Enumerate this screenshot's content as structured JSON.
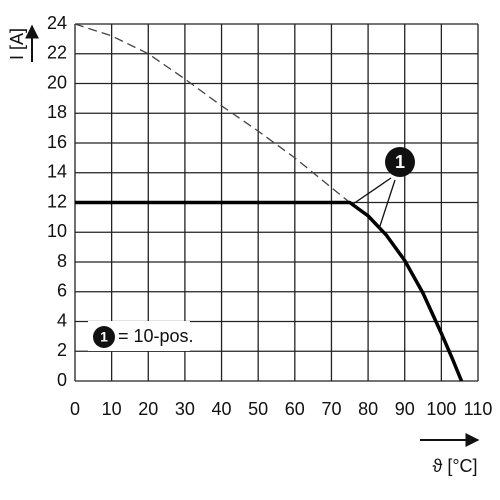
{
  "chart_data": {
    "type": "line",
    "xlabel": "ϑ [°C]",
    "ylabel": "I [A]",
    "xlim": [
      0,
      110
    ],
    "ylim": [
      0,
      24
    ],
    "xticks": [
      0,
      10,
      20,
      30,
      40,
      50,
      60,
      70,
      80,
      90,
      100,
      110
    ],
    "yticks": [
      0,
      2,
      4,
      6,
      8,
      10,
      12,
      14,
      16,
      18,
      20,
      22,
      24
    ],
    "grid": true,
    "series": [
      {
        "color": "#444444",
        "dashed": true,
        "x": [
          0,
          10,
          20,
          30,
          40,
          50,
          60,
          70,
          75
        ],
        "values": [
          24,
          23.2,
          22,
          20.3,
          18.5,
          16.8,
          15,
          13,
          12
        ]
      },
      {
        "color": "#000000",
        "dashed": false,
        "x": [
          0,
          75,
          80,
          85,
          90,
          95,
          100,
          103,
          105.5
        ],
        "values": [
          12,
          12,
          11.1,
          9.8,
          8.1,
          5.9,
          3.2,
          1.5,
          0
        ]
      }
    ],
    "annotation_marker": "1",
    "annotation_text": "= 10-pos."
  }
}
